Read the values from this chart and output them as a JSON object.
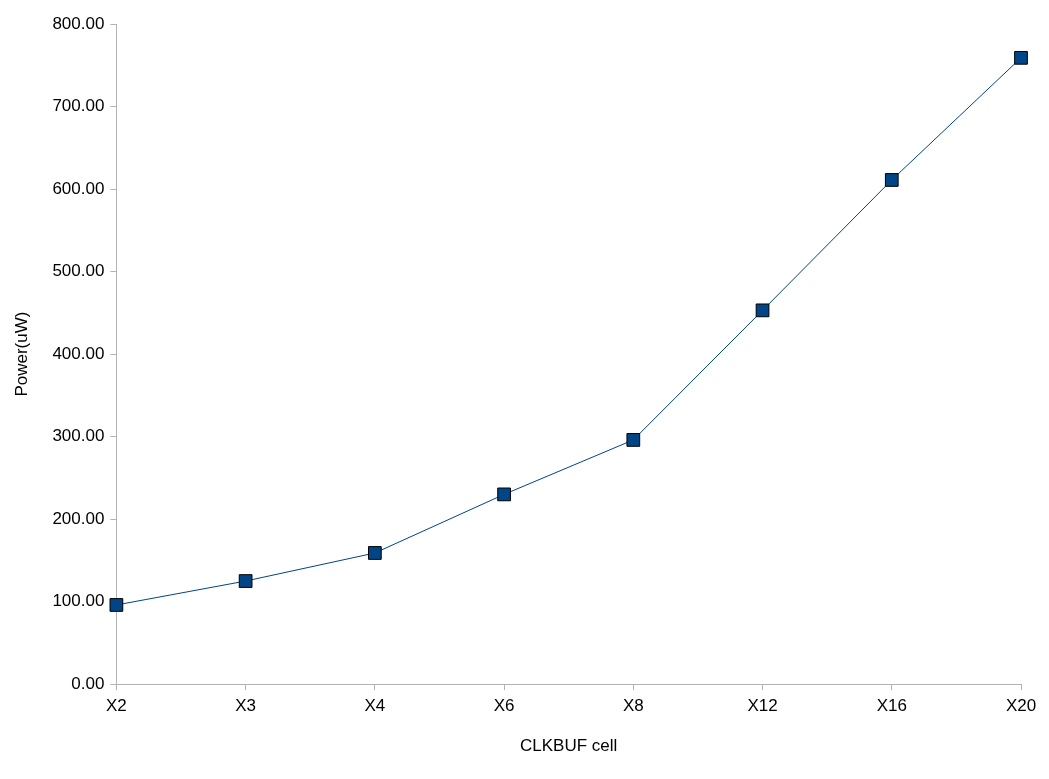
{
  "chart_data": {
    "type": "line",
    "xlabel": "CLKBUF cell",
    "ylabel": "Power(uW)",
    "categories": [
      "X2",
      "X3",
      "X4",
      "X6",
      "X8",
      "X12",
      "X16",
      "X20"
    ],
    "series": [
      {
        "color": "#004586",
        "values": [
          96,
          125,
          159,
          230,
          296,
          453,
          611,
          759
        ]
      }
    ],
    "ylim": [
      0,
      800
    ],
    "yticks": [
      {
        "value": 0,
        "label": "0.00"
      },
      {
        "value": 100,
        "label": "100.00"
      },
      {
        "value": 200,
        "label": "200.00"
      },
      {
        "value": 300,
        "label": "300.00"
      },
      {
        "value": 400,
        "label": "400.00"
      },
      {
        "value": 500,
        "label": "500.00"
      },
      {
        "value": 600,
        "label": "600.00"
      },
      {
        "value": 700,
        "label": "700.00"
      },
      {
        "value": 800,
        "label": "800.00"
      }
    ],
    "marker": "square",
    "line_style": "solid",
    "grid": false,
    "legend": false
  }
}
